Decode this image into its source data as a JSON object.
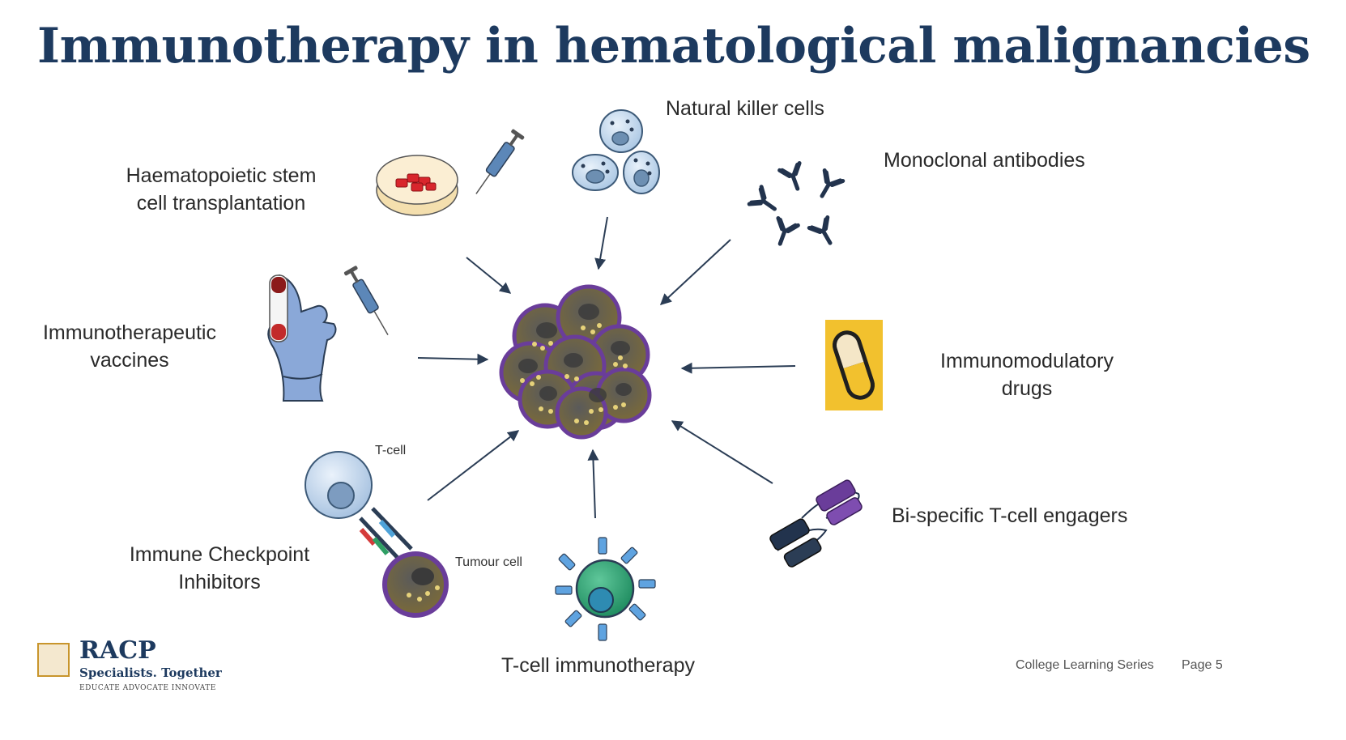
{
  "slide": {
    "title": "Immunotherapy in hematological malignancies",
    "labels": {
      "nk_cells": "Natural killer cells",
      "hsct_line1": "Haematopoietic stem",
      "hsct_line2": "cell transplantation",
      "mab": "Monoclonal antibodies",
      "vaccines_line1": "Immunotherapeutic",
      "vaccines_line2": "vaccines",
      "imid_line1": "Immunomodulatory",
      "imid_line2": "drugs",
      "checkpoint_line1": "Immune Checkpoint",
      "checkpoint_line2": "Inhibitors",
      "bite": "Bi-specific T-cell engagers",
      "tcell_therapy": "T-cell immunotherapy",
      "t_cell": "T-cell",
      "tumour_cell": "Tumour cell"
    },
    "colors": {
      "title": "#1d3a5f",
      "arrow": "#2b3d55",
      "tumour_purple": "#6a3d9a",
      "capsule_bg": "#f2c12e"
    }
  },
  "footer": {
    "series": "College Learning Series",
    "page": "Page 5",
    "logo_name": "RACP",
    "logo_tagline": "Specialists. Together",
    "logo_motto": "EDUCATE  ADVOCATE  INNOVATE"
  }
}
